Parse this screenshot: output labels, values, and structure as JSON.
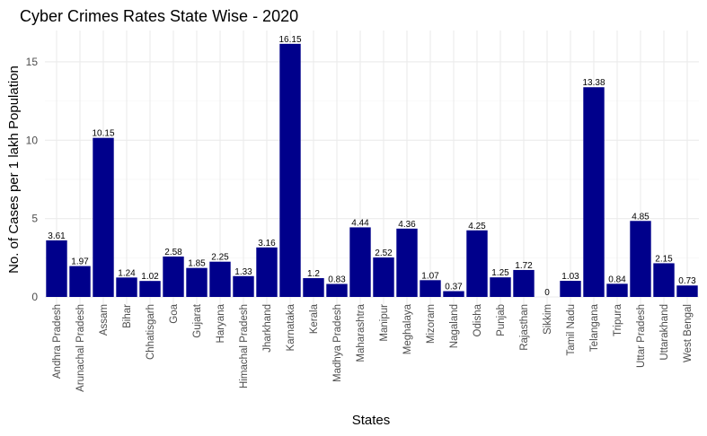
{
  "chart_data": {
    "type": "bar",
    "title": "Cyber Crimes Rates State Wise - 2020",
    "xlabel": "States",
    "ylabel": "No. of Cases per 1 lakh Population",
    "ylim": [
      0,
      17
    ],
    "yticks": [
      0,
      5,
      10,
      15
    ],
    "grid": true,
    "bar_color": "#00008B",
    "categories": [
      "Andhra Pradesh",
      "Arunachal Pradesh",
      "Assam",
      "Bihar",
      "Chhatisgarh",
      "Goa",
      "Gujarat",
      "Haryana",
      "Himachal Pradesh",
      "Jharkhand",
      "Karnataka",
      "Kerala",
      "Madhya Pradesh",
      "Maharashtra",
      "Manipur",
      "Meghalaya",
      "Mizoram",
      "Nagaland",
      "Odisha",
      "Punjab",
      "Rajasthan",
      "Sikkim",
      "Tamil Nadu",
      "Telangana",
      "Tripura",
      "Uttar Pradesh",
      "Uttarakhand",
      "West Bengal"
    ],
    "values": [
      3.61,
      1.97,
      10.15,
      1.24,
      1.02,
      2.58,
      1.85,
      2.25,
      1.33,
      3.16,
      16.15,
      1.2,
      0.83,
      4.44,
      2.52,
      4.36,
      1.07,
      0.37,
      4.25,
      1.25,
      1.72,
      0,
      1.03,
      13.38,
      0.84,
      4.85,
      2.15,
      0.73
    ]
  }
}
